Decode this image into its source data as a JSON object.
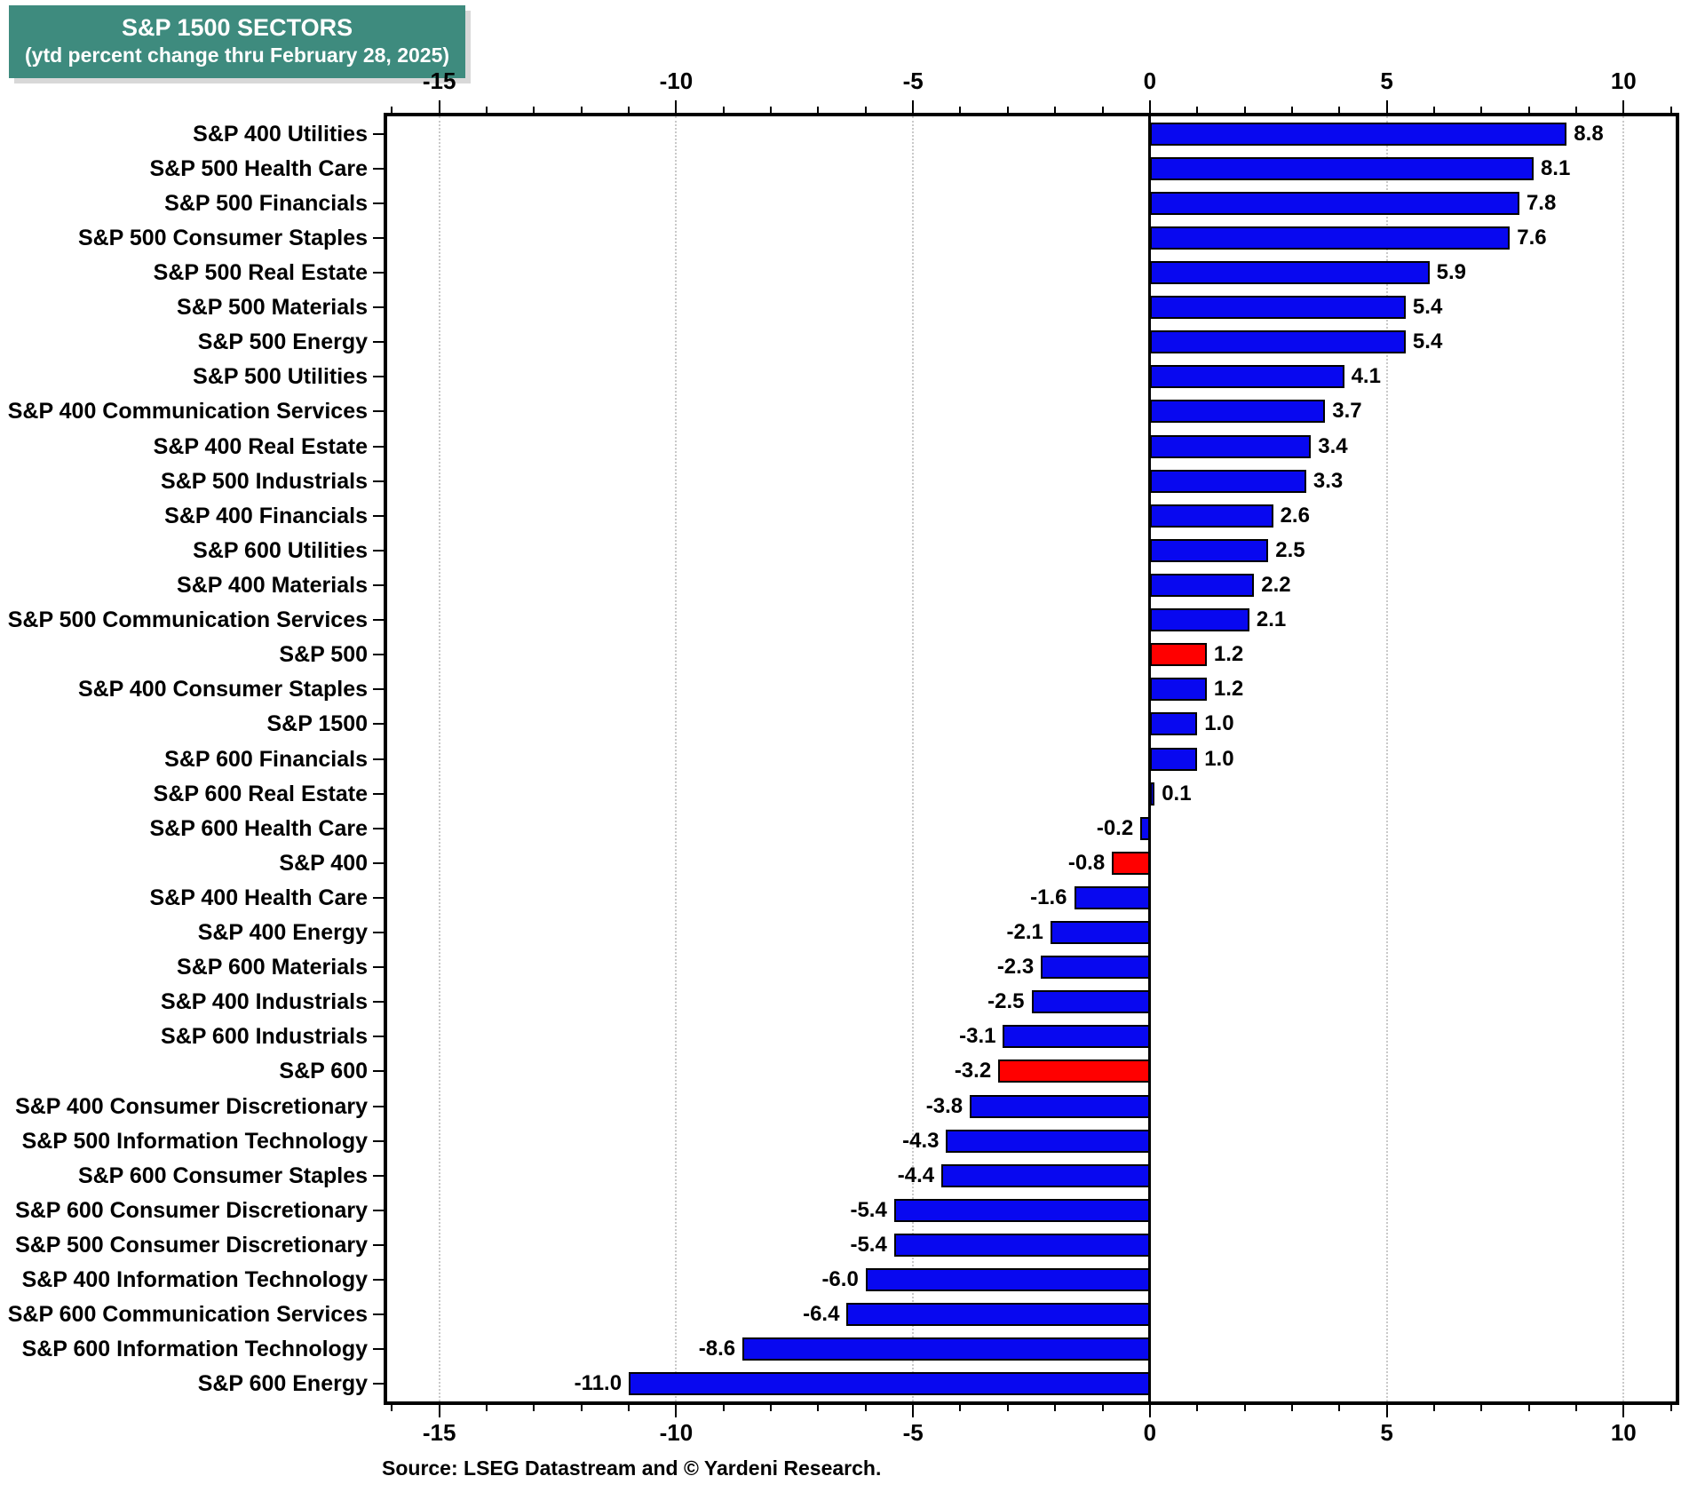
{
  "header": {
    "line1": "S&P 1500 SECTORS",
    "line2": "(ytd percent change thru February 28, 2025)"
  },
  "source": {
    "text": "Source: LSEG Datastream and © Yardeni Research."
  },
  "colors": {
    "title_bg": "#3E8B7E",
    "bar_blue": "#0808F0",
    "bar_red": "#FF0000",
    "grid": "#C9C9C9",
    "axis": "#000000"
  },
  "chart_data": {
    "type": "bar",
    "orientation": "horizontal",
    "title": "S&P 1500 SECTORS (ytd percent change thru February 28, 2025)",
    "xlabel": "ytd percent change",
    "ylabel": "",
    "xlim": [
      -16.1,
      11.1
    ],
    "x_ticks": [
      -15,
      -10,
      -5,
      0,
      5,
      10
    ],
    "x_tick_labels": [
      "-15",
      "-10",
      "-5",
      "0",
      "5",
      "10"
    ],
    "grid": "dotted vertical gridlines at major ticks, solid black zero line",
    "legend": "none",
    "categories": [
      "S&P 400 Utilities",
      "S&P 500 Health Care",
      "S&P 500 Financials",
      "S&P 500 Consumer Staples",
      "S&P 500 Real Estate",
      "S&P 500 Materials",
      "S&P 500 Energy",
      "S&P 500 Utilities",
      "S&P 400 Communication Services",
      "S&P 400 Real Estate",
      "S&P 500 Industrials",
      "S&P 400 Financials",
      "S&P 600 Utilities",
      "S&P 400 Materials",
      "S&P 500 Communication Services",
      "S&P 500",
      "S&P 400 Consumer Staples",
      "S&P 1500",
      "S&P 600 Financials",
      "S&P 600 Real Estate",
      "S&P 600 Health Care",
      "S&P 400",
      "S&P 400 Health Care",
      "S&P 400 Energy",
      "S&P 600 Materials",
      "S&P 400 Industrials",
      "S&P 600 Industrials",
      "S&P 600",
      "S&P 400 Consumer Discretionary",
      "S&P 500 Information Technology",
      "S&P 600 Consumer Staples",
      "S&P 600 Consumer Discretionary",
      "S&P 500 Consumer Discretionary",
      "S&P 400 Information Technology",
      "S&P 600 Communication Services",
      "S&P 600 Information Technology",
      "S&P 600 Energy"
    ],
    "values": [
      8.8,
      8.1,
      7.8,
      7.6,
      5.9,
      5.4,
      5.4,
      4.1,
      3.7,
      3.4,
      3.3,
      2.6,
      2.5,
      2.2,
      2.1,
      1.2,
      1.2,
      1.0,
      1.0,
      0.1,
      -0.2,
      -0.8,
      -1.6,
      -2.1,
      -2.3,
      -2.5,
      -3.1,
      -3.2,
      -3.8,
      -4.3,
      -4.4,
      -5.4,
      -5.4,
      -6.0,
      -6.4,
      -8.6,
      -11.0
    ],
    "value_labels": [
      "8.8",
      "8.1",
      "7.8",
      "7.6",
      "5.9",
      "5.4",
      "5.4",
      "4.1",
      "3.7",
      "3.4",
      "3.3",
      "2.6",
      "2.5",
      "2.2",
      "2.1",
      "1.2",
      "1.2",
      "1.0",
      "1.0",
      "0.1",
      "-0.2",
      "-0.8",
      "-1.6",
      "-2.1",
      "-2.3",
      "-2.5",
      "-3.1",
      "-3.2",
      "-3.8",
      "-4.3",
      "-4.4",
      "-5.4",
      "-5.4",
      "-6.0",
      "-6.4",
      "-8.6",
      "-11.0"
    ],
    "bar_colors": [
      "blue",
      "blue",
      "blue",
      "blue",
      "blue",
      "blue",
      "blue",
      "blue",
      "blue",
      "blue",
      "blue",
      "blue",
      "blue",
      "blue",
      "blue",
      "red",
      "blue",
      "blue",
      "blue",
      "blue",
      "blue",
      "red",
      "blue",
      "blue",
      "blue",
      "blue",
      "blue",
      "red",
      "blue",
      "blue",
      "blue",
      "blue",
      "blue",
      "blue",
      "blue",
      "blue",
      "blue"
    ]
  }
}
